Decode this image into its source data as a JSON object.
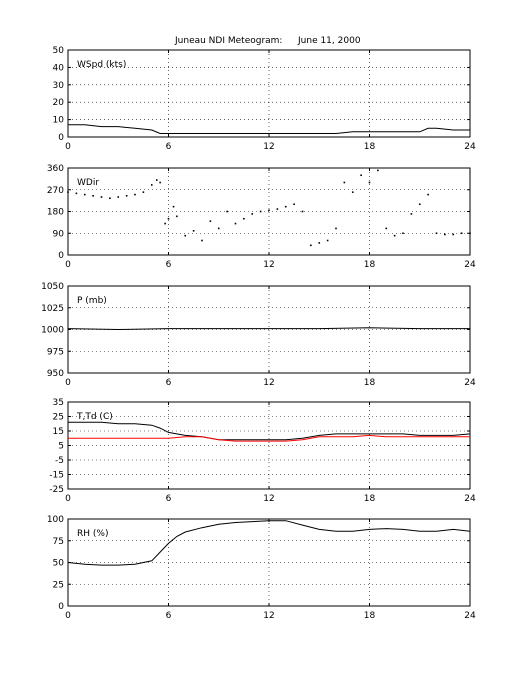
{
  "page_title": {
    "station": "Juneau NDI Meteogram:",
    "date": "June 11, 2000"
  },
  "colors": {
    "main": "#000000",
    "dewpoint": "#ff0000"
  },
  "chart_data": [
    {
      "type": "line",
      "panel_label": "WSpd (kts)",
      "xlim": [
        0,
        24
      ],
      "x_ticks": [
        0,
        6,
        12,
        18,
        24
      ],
      "ylim": [
        0,
        50
      ],
      "y_ticks": [
        0,
        10,
        20,
        30,
        40,
        50
      ],
      "grid": true,
      "series": [
        {
          "color": "#000000",
          "x": [
            0,
            1,
            2,
            3,
            4,
            5,
            5.5,
            6,
            7,
            8,
            9,
            10,
            11,
            12,
            13,
            14,
            15,
            16,
            17,
            18,
            19,
            20,
            21,
            21.5,
            22,
            23,
            24
          ],
          "y": [
            7,
            7,
            6,
            6,
            5,
            4,
            2,
            2,
            2,
            2,
            2,
            2,
            2,
            2,
            2,
            2,
            2,
            2,
            3,
            3,
            3,
            3,
            3,
            5,
            5,
            4,
            4
          ]
        }
      ]
    },
    {
      "type": "scatter",
      "panel_label": "WDir",
      "xlim": [
        0,
        24
      ],
      "x_ticks": [
        0,
        6,
        12,
        18,
        24
      ],
      "ylim": [
        0,
        360
      ],
      "y_ticks": [
        0,
        90,
        180,
        270,
        360
      ],
      "grid": true,
      "series": [
        {
          "color": "#000000",
          "x": [
            0,
            0.5,
            1,
            1.5,
            2,
            2.5,
            3,
            3.5,
            4,
            4.5,
            5,
            5.3,
            5.5,
            5.8,
            6,
            6.3,
            6.5,
            7,
            7.5,
            8,
            8.5,
            9,
            9.5,
            10,
            10.5,
            11,
            11.5,
            12,
            12.5,
            13,
            13.5,
            14,
            14.5,
            15,
            15.5,
            16,
            16.5,
            17,
            17.5,
            18,
            18.5,
            19,
            19.5,
            20,
            20.5,
            21,
            21.5,
            22,
            22.5,
            23,
            23.5,
            24
          ],
          "y": [
            260,
            255,
            250,
            245,
            240,
            235,
            240,
            245,
            250,
            260,
            290,
            310,
            300,
            130,
            150,
            200,
            160,
            80,
            100,
            60,
            140,
            110,
            180,
            130,
            150,
            170,
            180,
            185,
            190,
            200,
            210,
            180,
            40,
            50,
            60,
            110,
            300,
            260,
            330,
            300,
            350,
            110,
            80,
            90,
            170,
            210,
            250,
            90,
            85,
            85,
            90,
            90
          ]
        }
      ]
    },
    {
      "type": "line",
      "panel_label": "P (mb)",
      "xlim": [
        0,
        24
      ],
      "x_ticks": [
        0,
        6,
        12,
        18,
        24
      ],
      "ylim": [
        950,
        1050
      ],
      "y_ticks": [
        950,
        975,
        1000,
        1025,
        1050
      ],
      "grid": true,
      "series": [
        {
          "color": "#000000",
          "x": [
            0,
            3,
            6,
            9,
            12,
            15,
            18,
            21,
            24
          ],
          "y": [
            1001,
            1000,
            1001,
            1001,
            1001,
            1001,
            1002,
            1001,
            1001
          ]
        }
      ]
    },
    {
      "type": "line",
      "panel_label": "T,Td (C)",
      "xlim": [
        0,
        24
      ],
      "x_ticks": [
        0,
        6,
        12,
        18,
        24
      ],
      "ylim": [
        -25,
        35
      ],
      "y_ticks": [
        -25,
        -15,
        -5,
        5,
        15,
        25,
        35
      ],
      "grid": true,
      "series": [
        {
          "color": "#000000",
          "x": [
            0,
            1,
            2,
            3,
            4,
            5,
            5.5,
            6,
            7,
            8,
            9,
            10,
            11,
            12,
            13,
            14,
            15,
            16,
            17,
            18,
            19,
            20,
            21,
            22,
            23,
            24
          ],
          "y": [
            21,
            21,
            21,
            20,
            20,
            19,
            17,
            14,
            12,
            11,
            9,
            9,
            9,
            9,
            9,
            10,
            12,
            13,
            13,
            13,
            13,
            13,
            12,
            12,
            12,
            13
          ]
        },
        {
          "color": "#ff0000",
          "x": [
            0,
            1,
            2,
            3,
            4,
            5,
            6,
            7,
            8,
            9,
            10,
            11,
            12,
            13,
            14,
            15,
            16,
            17,
            18,
            19,
            20,
            21,
            22,
            23,
            24
          ],
          "y": [
            10,
            10,
            10,
            10,
            10,
            10,
            10,
            11,
            11,
            9,
            8,
            8,
            8,
            8,
            9,
            11,
            11,
            11,
            12,
            11,
            11,
            11,
            11,
            11,
            11
          ]
        }
      ]
    },
    {
      "type": "line",
      "panel_label": "RH (%)",
      "xlim": [
        0,
        24
      ],
      "x_ticks": [
        0,
        6,
        12,
        18,
        24
      ],
      "ylim": [
        0,
        100
      ],
      "y_ticks": [
        0,
        25,
        50,
        75,
        100
      ],
      "grid": true,
      "series": [
        {
          "color": "#000000",
          "x": [
            0,
            1,
            2,
            3,
            4,
            5,
            5.5,
            6,
            6.5,
            7,
            8,
            9,
            10,
            11,
            12,
            13,
            14,
            15,
            16,
            17,
            18,
            19,
            20,
            21,
            22,
            23,
            24
          ],
          "y": [
            50,
            48,
            47,
            47,
            48,
            52,
            62,
            72,
            80,
            85,
            90,
            94,
            96,
            97,
            98,
            98,
            93,
            88,
            86,
            86,
            88,
            89,
            88,
            86,
            86,
            88,
            86
          ]
        }
      ]
    }
  ]
}
